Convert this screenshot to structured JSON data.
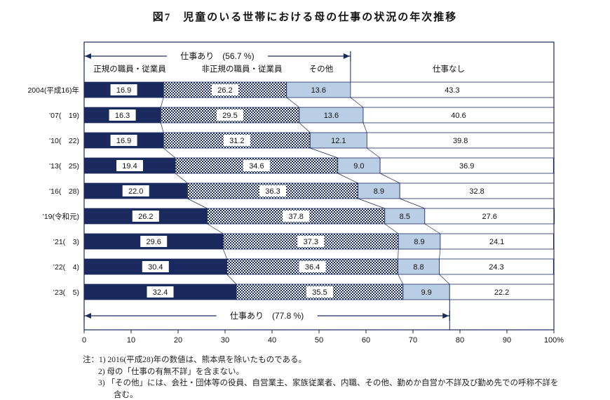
{
  "title": "図7　児童のいる世帯における母の仕事の状況の年次推移",
  "colors": {
    "navy": "#1b2a5e",
    "light_blue": "#b9cde4",
    "text": "#111111"
  },
  "chart_data": {
    "type": "bar",
    "subtype": "horizontal-stacked",
    "title": "図7　児童のいる世帯における母の仕事の状況の年次推移",
    "categories": [
      "2004(平成16)年",
      "’07(　19)",
      "’10(　22)",
      "’13(　25)",
      "’16(　28)",
      "’19(令和元)",
      "’21(　3)",
      "’22(　4)",
      "’23(　5)"
    ],
    "series": [
      {
        "name": "正規の職員・従業員",
        "style": "solid-navy",
        "values": [
          16.9,
          16.3,
          16.9,
          19.4,
          22.0,
          26.2,
          29.6,
          30.4,
          32.4
        ]
      },
      {
        "name": "非正規の職員・従業員",
        "style": "checker",
        "values": [
          26.2,
          29.5,
          31.2,
          34.6,
          36.3,
          37.8,
          37.3,
          36.4,
          35.5
        ]
      },
      {
        "name": "その他",
        "style": "light-blue",
        "values": [
          13.6,
          13.6,
          12.1,
          9.0,
          8.9,
          8.5,
          8.9,
          8.8,
          9.9
        ]
      },
      {
        "name": "仕事なし",
        "style": "white",
        "values": [
          43.3,
          40.6,
          39.8,
          36.9,
          32.8,
          27.6,
          24.1,
          24.3,
          22.2
        ]
      }
    ],
    "annotations": {
      "top_arrow": {
        "label": "仕事あり　(56.7 %)",
        "from": 0,
        "to": 56.7
      },
      "bottom_arrow": {
        "label": "仕事あり　(77.8 %)",
        "from": 0,
        "to": 77.8
      }
    },
    "x_ticks": [
      "0",
      "10",
      "20",
      "30",
      "40",
      "50",
      "60",
      "70",
      "80",
      "90",
      "100%"
    ],
    "xlim": [
      0,
      100
    ],
    "grid": false,
    "legend_position": "column-headers-top"
  },
  "notes": [
    "注：1) 2016(平成28)年の数値は、熊本県を除いたものである。",
    "2) 母の「仕事の有無不詳」を含まない。",
    "3) 「その他」には、会社・団体等の役員、自営業主、家族従業者、内職、その他、勤めか自営か不詳及び勤め先での呼称不詳を",
    "含む。"
  ]
}
